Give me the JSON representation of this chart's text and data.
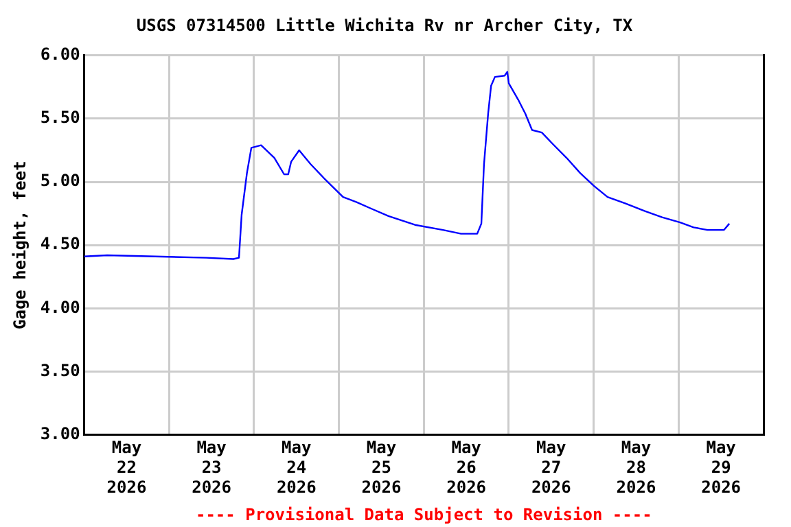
{
  "chart_data": {
    "type": "line",
    "title": "USGS 07314500 Little Wichita Rv nr Archer City, TX",
    "ylabel": "Gage height, feet",
    "annotations": [
      "---- Provisional Data Subject to Revision ----"
    ],
    "x": [
      "2026-05-22T00:00",
      "2026-05-22T06:30",
      "2026-05-23T10:30",
      "2026-05-23T18:10",
      "2026-05-23T19:45",
      "2026-05-23T20:30",
      "2026-05-23T22:00",
      "2026-05-23T23:15",
      "2026-05-24T02:00",
      "2026-05-24T05:45",
      "2026-05-24T08:30",
      "2026-05-24T09:40",
      "2026-05-24T10:30",
      "2026-05-24T12:45",
      "2026-05-24T16:00",
      "2026-05-24T19:45",
      "2026-05-25T01:10",
      "2026-05-25T05:00",
      "2026-05-25T09:00",
      "2026-05-25T14:00",
      "2026-05-25T21:30",
      "2026-05-26T05:25",
      "2026-05-26T10:30",
      "2026-05-26T15:05",
      "2026-05-26T16:15",
      "2026-05-26T17:00",
      "2026-05-26T18:10",
      "2026-05-26T19:00",
      "2026-05-26T20:05",
      "2026-05-26T22:50",
      "2026-05-26T23:35",
      "2026-05-27T00:00",
      "2026-05-27T02:40",
      "2026-05-27T04:40",
      "2026-05-27T06:35",
      "2026-05-27T09:20",
      "2026-05-27T12:25",
      "2026-05-27T16:20",
      "2026-05-27T20:10",
      "2026-05-28T00:00",
      "2026-05-28T03:55",
      "2026-05-28T08:55",
      "2026-05-28T14:20",
      "2026-05-28T19:20",
      "2026-05-29T00:25",
      "2026-05-29T04:15",
      "2026-05-29T08:10",
      "2026-05-29T12:50",
      "2026-05-29T14:20"
    ],
    "series": [
      {
        "color": "#0000ff",
        "values": [
          4.41,
          4.42,
          4.4,
          4.39,
          4.4,
          4.74,
          5.07,
          5.27,
          5.29,
          5.19,
          5.06,
          5.06,
          5.16,
          5.25,
          5.14,
          5.03,
          4.88,
          4.84,
          4.79,
          4.73,
          4.66,
          4.62,
          4.59,
          4.59,
          4.67,
          5.14,
          5.54,
          5.76,
          5.83,
          5.84,
          5.87,
          5.78,
          5.65,
          5.54,
          5.41,
          5.39,
          5.3,
          5.19,
          5.07,
          4.97,
          4.88,
          4.83,
          4.77,
          4.72,
          4.68,
          4.64,
          4.62,
          4.62,
          4.67
        ]
      }
    ],
    "xlim": [
      "2026-05-22T00:00",
      "2026-05-30T00:00"
    ],
    "xticks": [
      {
        "value": "2026-05-22T12:00",
        "label": "May\n22\n2026"
      },
      {
        "value": "2026-05-23T00:00",
        "label": null
      },
      {
        "value": "2026-05-23T12:00",
        "label": "May\n23\n2026"
      },
      {
        "value": "2026-05-24T00:00",
        "label": null
      },
      {
        "value": "2026-05-24T12:00",
        "label": "May\n24\n2026"
      },
      {
        "value": "2026-05-25T00:00",
        "label": null
      },
      {
        "value": "2026-05-25T12:00",
        "label": "May\n25\n2026"
      },
      {
        "value": "2026-05-26T00:00",
        "label": null
      },
      {
        "value": "2026-05-26T12:00",
        "label": "May\n26\n2026"
      },
      {
        "value": "2026-05-27T00:00",
        "label": null
      },
      {
        "value": "2026-05-27T12:00",
        "label": "May\n27\n2026"
      },
      {
        "value": "2026-05-28T00:00",
        "label": null
      },
      {
        "value": "2026-05-28T12:00",
        "label": "May\n28\n2026"
      },
      {
        "value": "2026-05-29T00:00",
        "label": null
      },
      {
        "value": "2026-05-29T12:00",
        "label": "May\n29\n2026"
      }
    ],
    "ylim": [
      3,
      6
    ],
    "yticks": [
      {
        "value": 3,
        "label": "3.00"
      },
      {
        "value": 3.5,
        "label": "3.50"
      },
      {
        "value": 4,
        "label": "4.00"
      },
      {
        "value": 4.5,
        "label": "4.50"
      },
      {
        "value": 5,
        "label": "5.00"
      },
      {
        "value": 5.5,
        "label": "5.50"
      },
      {
        "value": 6,
        "label": "6.00"
      }
    ],
    "grid": true,
    "legend": false,
    "marker": "none",
    "line_style": "solid"
  }
}
